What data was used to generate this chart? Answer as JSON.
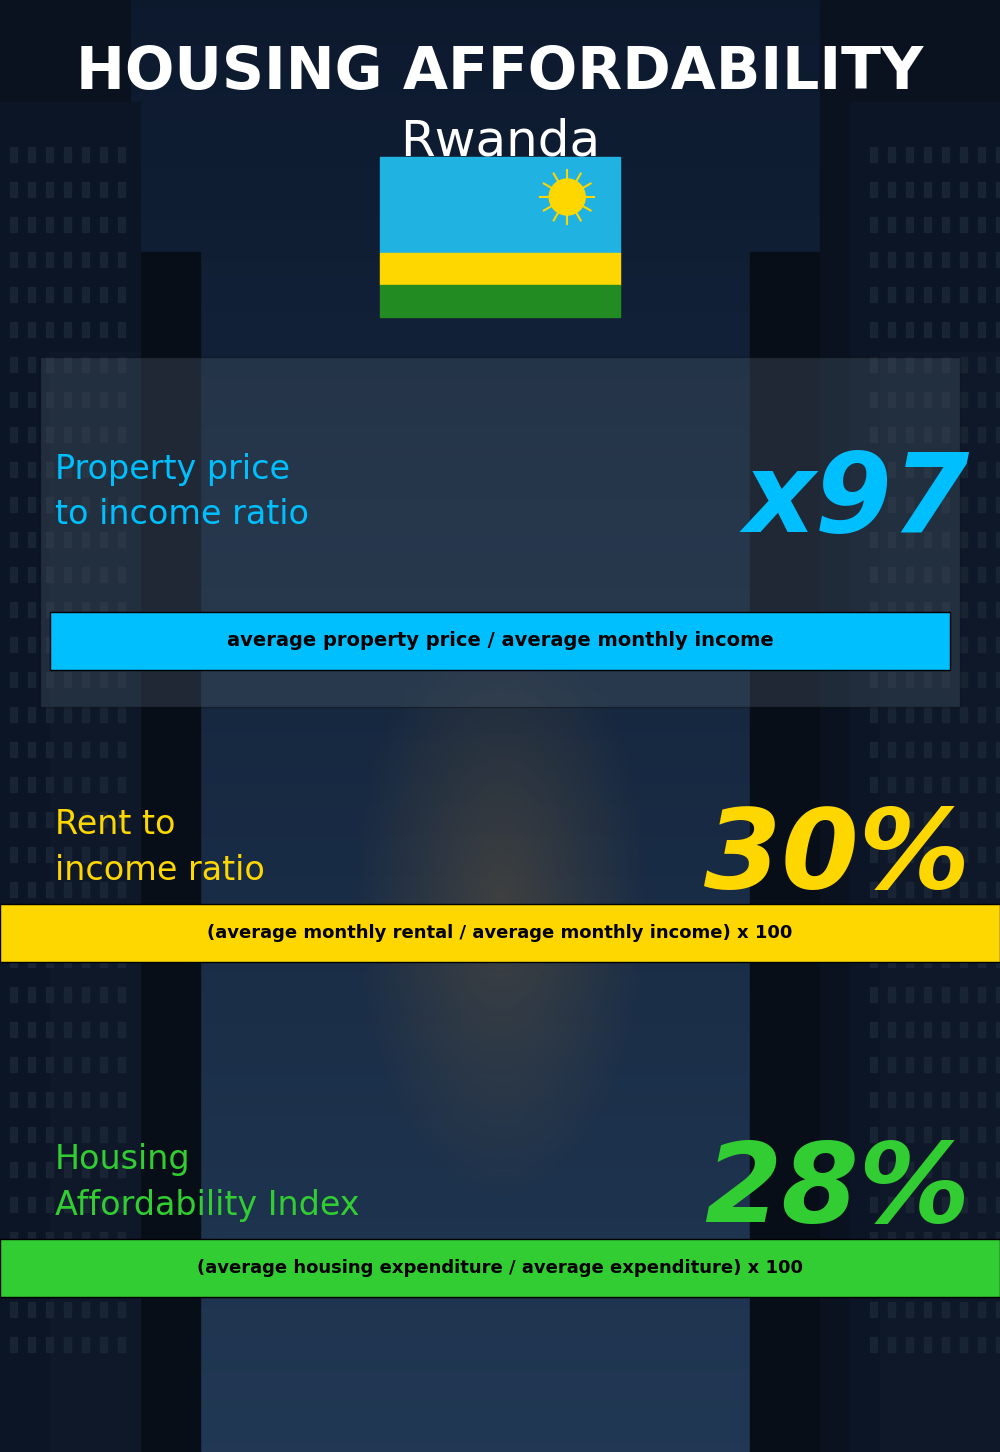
{
  "title_line1": "HOUSING AFFORDABILITY",
  "title_line2": "Rwanda",
  "section1_label": "Property price\nto income ratio",
  "section1_value": "x97",
  "section1_label_color": "#00BFFF",
  "section1_value_color": "#00BFFF",
  "section1_banner": "average property price / average monthly income",
  "section1_banner_bg": "#00BFFF",
  "section1_banner_color": "#000000",
  "section2_label": "Rent to\nincome ratio",
  "section2_value": "30%",
  "section2_label_color": "#FFD700",
  "section2_value_color": "#FFD700",
  "section2_banner": "(average monthly rental / average monthly income) x 100",
  "section2_banner_bg": "#FFD700",
  "section2_banner_color": "#000000",
  "section3_label": "Housing\nAffordability Index",
  "section3_value": "28%",
  "section3_label_color": "#32CD32",
  "section3_value_color": "#32CD32",
  "section3_banner": "(average housing expenditure / average expenditure) x 100",
  "section3_banner_bg": "#32CD32",
  "section3_banner_color": "#000000",
  "bg_color": "#0a0f1a",
  "title_color": "#FFFFFF"
}
